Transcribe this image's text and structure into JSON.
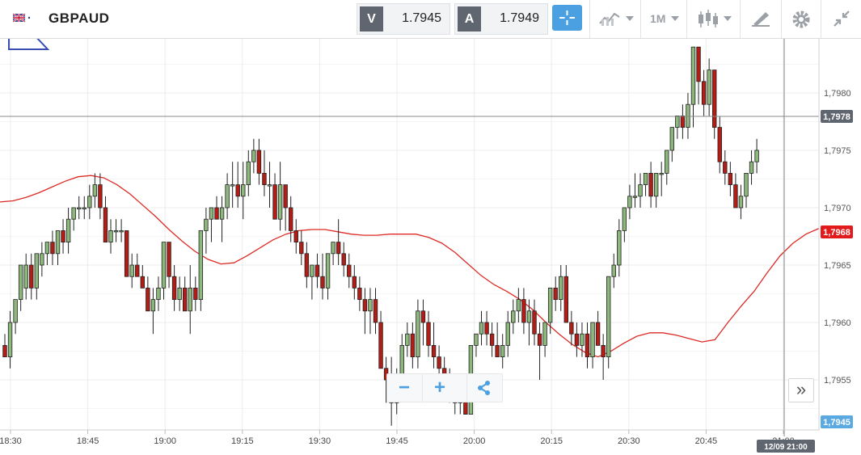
{
  "header": {
    "symbol": "GBPAUD",
    "sell_label": "V",
    "sell_price": "1.7945",
    "buy_label": "A",
    "buy_price": "1.7949",
    "timeframe": "1M"
  },
  "zoom": {
    "minus": "−",
    "plus": "+",
    "forward": "»"
  },
  "colors": {
    "bull": "#8db87c",
    "bear": "#b31d16",
    "ma": "#dd2a25",
    "accent": "#4aa0e0",
    "crosshair_label": "#5f6670",
    "ma_label": "#e11b1b",
    "bid_label": "#5aa9e0"
  },
  "chart_data": {
    "type": "candlestick",
    "symbol": "GBPAUD",
    "ylim": [
      1.7948,
      1.7985
    ],
    "y_ticks": [
      "1,7955",
      "1,7960",
      "1,7965",
      "1,7970",
      "1,7975",
      "1,7980"
    ],
    "x_ticks": [
      "18:30",
      "18:45",
      "19:00",
      "19:15",
      "19:30",
      "19:45",
      "20:00",
      "20:15",
      "20:30",
      "20:45",
      "21:00"
    ],
    "crosshair": {
      "price": "1,7978",
      "time": "12/09 21:00"
    },
    "markers": {
      "ma_value": "1,7968",
      "bid": "1,7945"
    },
    "grid": true,
    "ohlc": [
      [
        1.7958,
        1.7959,
        1.7957,
        1.7957
      ],
      [
        1.7957,
        1.7961,
        1.7956,
        1.796
      ],
      [
        1.796,
        1.7962,
        1.7959,
        1.7962
      ],
      [
        1.7962,
        1.7965,
        1.7961,
        1.7965
      ],
      [
        1.7963,
        1.7966,
        1.7962,
        1.7965
      ],
      [
        1.7965,
        1.7966,
        1.7962,
        1.7963
      ],
      [
        1.7963,
        1.7966,
        1.7962,
        1.7966
      ],
      [
        1.7965,
        1.7967,
        1.7964,
        1.7966
      ],
      [
        1.7966,
        1.7967,
        1.7965,
        1.7967
      ],
      [
        1.7967,
        1.7968,
        1.7965,
        1.7966
      ],
      [
        1.7966,
        1.7968,
        1.7965,
        1.7968
      ],
      [
        1.7968,
        1.7969,
        1.7966,
        1.7967
      ],
      [
        1.7967,
        1.797,
        1.7966,
        1.7969
      ],
      [
        1.7969,
        1.797,
        1.7968,
        1.797
      ],
      [
        1.797,
        1.7971,
        1.7969,
        1.797
      ],
      [
        1.797,
        1.7971,
        1.7969,
        1.797
      ],
      [
        1.797,
        1.7972,
        1.7969,
        1.7971
      ],
      [
        1.7971,
        1.7973,
        1.797,
        1.7972
      ],
      [
        1.7972,
        1.7973,
        1.7969,
        1.797
      ],
      [
        1.797,
        1.7971,
        1.7967,
        1.7967
      ],
      [
        1.7967,
        1.7969,
        1.7966,
        1.7968
      ],
      [
        1.7968,
        1.7969,
        1.7967,
        1.7968
      ],
      [
        1.7968,
        1.7969,
        1.7967,
        1.7968
      ],
      [
        1.7968,
        1.7968,
        1.7964,
        1.7964
      ],
      [
        1.7964,
        1.7966,
        1.7963,
        1.7965
      ],
      [
        1.7965,
        1.7966,
        1.7964,
        1.7964
      ],
      [
        1.7964,
        1.7965,
        1.7963,
        1.7963
      ],
      [
        1.7963,
        1.7964,
        1.7961,
        1.7961
      ],
      [
        1.7961,
        1.7963,
        1.7959,
        1.7962
      ],
      [
        1.7962,
        1.7964,
        1.7961,
        1.7963
      ],
      [
        1.7963,
        1.7967,
        1.7962,
        1.7967
      ],
      [
        1.7967,
        1.7967,
        1.7963,
        1.7964
      ],
      [
        1.7964,
        1.7965,
        1.7961,
        1.7962
      ],
      [
        1.7962,
        1.7964,
        1.7961,
        1.7963
      ],
      [
        1.7963,
        1.7964,
        1.7961,
        1.7961
      ],
      [
        1.7961,
        1.7965,
        1.7959,
        1.7963
      ],
      [
        1.7963,
        1.7964,
        1.7961,
        1.7962
      ],
      [
        1.7962,
        1.7968,
        1.7961,
        1.7968
      ],
      [
        1.7968,
        1.797,
        1.7966,
        1.7969
      ],
      [
        1.7969,
        1.797,
        1.7967,
        1.797
      ],
      [
        1.797,
        1.7971,
        1.7969,
        1.7969
      ],
      [
        1.7969,
        1.7971,
        1.7967,
        1.797
      ],
      [
        1.797,
        1.7973,
        1.7969,
        1.7972
      ],
      [
        1.7972,
        1.7974,
        1.797,
        1.7972
      ],
      [
        1.7972,
        1.7974,
        1.797,
        1.7971
      ],
      [
        1.7971,
        1.7974,
        1.7969,
        1.7972
      ],
      [
        1.7972,
        1.7975,
        1.7971,
        1.7974
      ],
      [
        1.7974,
        1.7976,
        1.7973,
        1.7975
      ],
      [
        1.7975,
        1.7976,
        1.7972,
        1.7973
      ],
      [
        1.7973,
        1.7975,
        1.7971,
        1.7972
      ],
      [
        1.7972,
        1.7974,
        1.797,
        1.7972
      ],
      [
        1.7972,
        1.7973,
        1.7969,
        1.7969
      ],
      [
        1.7969,
        1.7974,
        1.7968,
        1.7972
      ],
      [
        1.7972,
        1.7972,
        1.7968,
        1.797
      ],
      [
        1.797,
        1.7971,
        1.7967,
        1.7968
      ],
      [
        1.7968,
        1.7969,
        1.7966,
        1.7967
      ],
      [
        1.7967,
        1.7968,
        1.7965,
        1.7966
      ],
      [
        1.7966,
        1.7967,
        1.7963,
        1.7964
      ],
      [
        1.7964,
        1.7965,
        1.7962,
        1.7965
      ],
      [
        1.7965,
        1.7966,
        1.7963,
        1.7964
      ],
      [
        1.7964,
        1.7966,
        1.7962,
        1.7963
      ],
      [
        1.7963,
        1.7966,
        1.7962,
        1.7966
      ],
      [
        1.7966,
        1.7967,
        1.7965,
        1.7967
      ],
      [
        1.7967,
        1.7969,
        1.7965,
        1.7966
      ],
      [
        1.7966,
        1.7967,
        1.7964,
        1.7965
      ],
      [
        1.7965,
        1.7966,
        1.7963,
        1.7964
      ],
      [
        1.7964,
        1.7965,
        1.7962,
        1.7963
      ],
      [
        1.7963,
        1.7964,
        1.7961,
        1.7962
      ],
      [
        1.7962,
        1.7963,
        1.7959,
        1.7961
      ],
      [
        1.7961,
        1.7963,
        1.7959,
        1.7962
      ],
      [
        1.7962,
        1.7963,
        1.7959,
        1.796
      ],
      [
        1.796,
        1.7961,
        1.7956,
        1.7956
      ],
      [
        1.7956,
        1.7957,
        1.7953,
        1.7955
      ],
      [
        1.7955,
        1.7957,
        1.7951,
        1.7953
      ],
      [
        1.7953,
        1.7956,
        1.7952,
        1.7955
      ],
      [
        1.7955,
        1.7959,
        1.7954,
        1.7958
      ],
      [
        1.7958,
        1.796,
        1.7957,
        1.7959
      ],
      [
        1.7959,
        1.796,
        1.7956,
        1.7957
      ],
      [
        1.7957,
        1.7962,
        1.7956,
        1.7961
      ],
      [
        1.7961,
        1.7962,
        1.7958,
        1.796
      ],
      [
        1.796,
        1.7961,
        1.7957,
        1.7958
      ],
      [
        1.7958,
        1.796,
        1.7956,
        1.7957
      ],
      [
        1.7957,
        1.7958,
        1.7955,
        1.7956
      ],
      [
        1.7956,
        1.7957,
        1.7954,
        1.7955
      ],
      [
        1.7955,
        1.7956,
        1.7953,
        1.7954
      ],
      [
        1.7954,
        1.7955,
        1.7952,
        1.7953
      ],
      [
        1.7953,
        1.7954,
        1.7952,
        1.7954
      ],
      [
        1.7954,
        1.7955,
        1.7952,
        1.7952
      ],
      [
        1.7952,
        1.7958,
        1.7952,
        1.7958
      ],
      [
        1.7958,
        1.7959,
        1.7957,
        1.7959
      ],
      [
        1.7959,
        1.7961,
        1.7958,
        1.796
      ],
      [
        1.796,
        1.7961,
        1.7958,
        1.7959
      ],
      [
        1.7959,
        1.796,
        1.7957,
        1.7958
      ],
      [
        1.7958,
        1.796,
        1.7957,
        1.7957
      ],
      [
        1.7957,
        1.7959,
        1.7956,
        1.7958
      ],
      [
        1.7958,
        1.7961,
        1.7957,
        1.796
      ],
      [
        1.796,
        1.7962,
        1.7959,
        1.7961
      ],
      [
        1.7961,
        1.7963,
        1.796,
        1.7962
      ],
      [
        1.7962,
        1.7963,
        1.7959,
        1.796
      ],
      [
        1.796,
        1.7962,
        1.7958,
        1.7961
      ],
      [
        1.7961,
        1.7962,
        1.7958,
        1.7959
      ],
      [
        1.7959,
        1.796,
        1.7955,
        1.7958
      ],
      [
        1.7958,
        1.796,
        1.7957,
        1.796
      ],
      [
        1.796,
        1.7963,
        1.7959,
        1.7963
      ],
      [
        1.7963,
        1.7964,
        1.7961,
        1.7962
      ],
      [
        1.7962,
        1.7965,
        1.7961,
        1.7964
      ],
      [
        1.7964,
        1.7965,
        1.796,
        1.796
      ],
      [
        1.796,
        1.7961,
        1.7958,
        1.7959
      ],
      [
        1.7959,
        1.796,
        1.7957,
        1.7958
      ],
      [
        1.7958,
        1.796,
        1.7957,
        1.7959
      ],
      [
        1.7959,
        1.796,
        1.7956,
        1.7957
      ],
      [
        1.7957,
        1.796,
        1.7956,
        1.796
      ],
      [
        1.796,
        1.7961,
        1.7958,
        1.7958
      ],
      [
        1.7958,
        1.7959,
        1.7955,
        1.7957
      ],
      [
        1.7957,
        1.7964,
        1.7956,
        1.7964
      ],
      [
        1.7964,
        1.7966,
        1.7963,
        1.7965
      ],
      [
        1.7965,
        1.7969,
        1.7964,
        1.7968
      ],
      [
        1.7968,
        1.797,
        1.7967,
        1.797
      ],
      [
        1.797,
        1.7972,
        1.7969,
        1.7971
      ],
      [
        1.7971,
        1.7973,
        1.797,
        1.7971
      ],
      [
        1.7971,
        1.7973,
        1.797,
        1.7972
      ],
      [
        1.7972,
        1.7973,
        1.7971,
        1.7973
      ],
      [
        1.7973,
        1.7974,
        1.797,
        1.7971
      ],
      [
        1.7971,
        1.7973,
        1.797,
        1.7973
      ],
      [
        1.7973,
        1.7974,
        1.7971,
        1.7973
      ],
      [
        1.7973,
        1.7975,
        1.7972,
        1.7975
      ],
      [
        1.7975,
        1.7977,
        1.7974,
        1.7977
      ],
      [
        1.7977,
        1.7978,
        1.7976,
        1.7978
      ],
      [
        1.7978,
        1.7979,
        1.7976,
        1.7977
      ],
      [
        1.7977,
        1.798,
        1.7976,
        1.7979
      ],
      [
        1.7979,
        1.7984,
        1.7977,
        1.7984
      ],
      [
        1.7984,
        1.7984,
        1.7979,
        1.7981
      ],
      [
        1.7981,
        1.7982,
        1.7978,
        1.7979
      ],
      [
        1.7979,
        1.7983,
        1.7978,
        1.7982
      ],
      [
        1.7982,
        1.7982,
        1.7976,
        1.7977
      ],
      [
        1.7977,
        1.7978,
        1.7973,
        1.7974
      ],
      [
        1.7974,
        1.7975,
        1.7972,
        1.7973
      ],
      [
        1.7973,
        1.7974,
        1.7971,
        1.7972
      ],
      [
        1.7972,
        1.7973,
        1.797,
        1.797
      ],
      [
        1.797,
        1.7972,
        1.7969,
        1.7971
      ],
      [
        1.7971,
        1.7973,
        1.797,
        1.7973
      ],
      [
        1.7973,
        1.7975,
        1.7972,
        1.7974
      ],
      [
        1.7974,
        1.7976,
        1.7973,
        1.7975
      ]
    ],
    "ma": [
      1.79705,
      1.79706,
      1.79709,
      1.79713,
      1.79718,
      1.79723,
      1.79727,
      1.79728,
      1.79726,
      1.7972,
      1.79712,
      1.79702,
      1.79692,
      1.79681,
      1.79671,
      1.79662,
      1.79655,
      1.79651,
      1.79652,
      1.79658,
      1.79665,
      1.79672,
      1.79677,
      1.7968,
      1.79681,
      1.79681,
      1.79679,
      1.79677,
      1.79676,
      1.79676,
      1.79677,
      1.79677,
      1.79677,
      1.79674,
      1.79669,
      1.79661,
      1.79651,
      1.79641,
      1.79633,
      1.79627,
      1.7962,
      1.79611,
      1.796,
      1.7959,
      1.79581,
      1.79574,
      1.7957,
      1.79575,
      1.79582,
      1.79588,
      1.79591,
      1.79591,
      1.79589,
      1.79586,
      1.79583,
      1.79585,
      1.796,
      1.79614,
      1.79627,
      1.79643,
      1.79658,
      1.79669,
      1.79677,
      1.79682
    ]
  }
}
